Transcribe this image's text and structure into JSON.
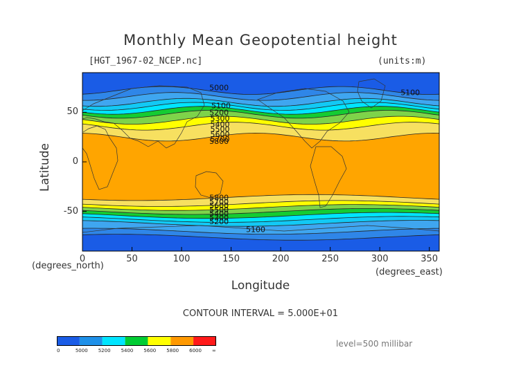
{
  "header": {
    "title": "Monthly Mean Geopotential height",
    "filename": "[HGT_1967-02_NCEP.nc]",
    "units": "(units:m)"
  },
  "axes": {
    "xlabel": "Longitude",
    "ylabel": "Latitude",
    "x_units": "(degrees_east)",
    "y_units": "(degrees_north)"
  },
  "footer": {
    "contour_interval": "CONTOUR INTERVAL = 5.000E+01",
    "level": "level=500 millibar"
  },
  "chart_data": {
    "type": "heatmap",
    "title": "Monthly Mean Geopotential height",
    "xlabel": "Longitude",
    "ylabel": "Latitude",
    "xlim": [
      0,
      360
    ],
    "ylim": [
      -90,
      90
    ],
    "x_ticks": [
      0,
      50,
      100,
      150,
      200,
      250,
      300,
      350
    ],
    "y_ticks": [
      50,
      0,
      -50
    ],
    "contour_labels": [
      {
        "text": "5000",
        "x": 128,
        "y": 75
      },
      {
        "text": "5100",
        "x": 130,
        "y": 57
      },
      {
        "text": "5100",
        "x": 321,
        "y": 70
      },
      {
        "text": "5200",
        "x": 128,
        "y": 50
      },
      {
        "text": "5300",
        "x": 129,
        "y": 44
      },
      {
        "text": "5400",
        "x": 129,
        "y": 38
      },
      {
        "text": "5500",
        "x": 129,
        "y": 33
      },
      {
        "text": "5600",
        "x": 129,
        "y": 28
      },
      {
        "text": "5700",
        "x": 129,
        "y": 23
      },
      {
        "text": "5800",
        "x": 128,
        "y": 21
      },
      {
        "text": "5800",
        "x": 128,
        "y": -36
      },
      {
        "text": "5700",
        "x": 128,
        "y": -40
      },
      {
        "text": "5600",
        "x": 128,
        "y": -44
      },
      {
        "text": "5500",
        "x": 128,
        "y": -48
      },
      {
        "text": "5400",
        "x": 128,
        "y": -52
      },
      {
        "text": "5300",
        "x": 128,
        "y": -56
      },
      {
        "text": "5200",
        "x": 128,
        "y": -60
      },
      {
        "text": "5100",
        "x": 165,
        "y": -68
      }
    ],
    "colorbar": {
      "labels": [
        "0",
        "5000",
        "5200",
        "5400",
        "5600",
        "5800",
        "6000",
        "∞"
      ],
      "colors": [
        "#1a5ce6",
        "#1e90e8",
        "#00e5ff",
        "#00cc33",
        "#ffff00",
        "#ff9900",
        "#ff1a1a"
      ]
    },
    "level_colors": [
      "#1a5ce6",
      "#2f86e8",
      "#3fa6f0",
      "#12c9f5",
      "#00e5ff",
      "#14cc33",
      "#7ed34a",
      "#ffff00",
      "#f7e060",
      "#ffa500"
    ]
  }
}
